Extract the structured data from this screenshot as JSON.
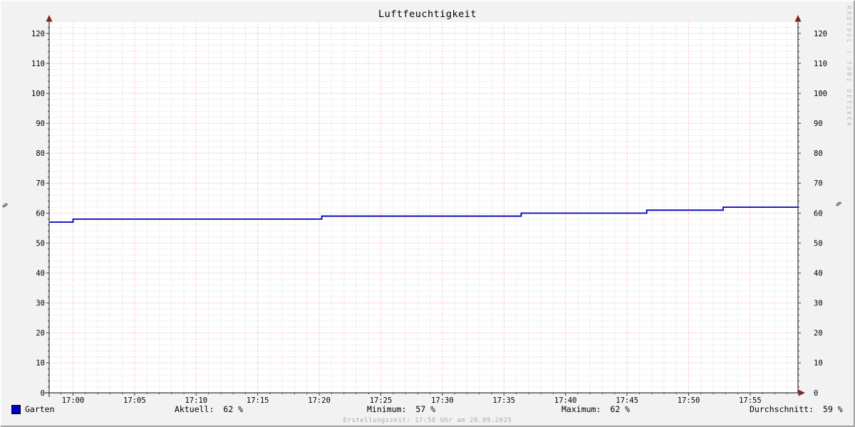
{
  "title": "Luftfeuchtigkeit",
  "watermark": "RRDTOOL / TOBI OETIKER",
  "footer": "Erstellungszeit: 17:58 Uhr am 28.09.2025",
  "legend": {
    "series_label": "Garten",
    "swatch_color": "#0000c8",
    "stats": [
      {
        "label": "Aktuell:",
        "value": "62 %"
      },
      {
        "label": "Minimum:",
        "value": "57 %"
      },
      {
        "label": "Maximum:",
        "value": "62 %"
      },
      {
        "label": "Durchschnitt:",
        "value": "59 %"
      }
    ]
  },
  "chart_data": {
    "type": "line",
    "title": "Luftfeuchtigkeit",
    "ylabel": "%",
    "ylabel_right": "%",
    "legend_position": "bottom",
    "x_axis": {
      "tick_labels": [
        "17:00",
        "17:05",
        "17:10",
        "17:15",
        "17:20",
        "17:25",
        "17:30",
        "17:35",
        "17:40",
        "17:45",
        "17:50",
        "17:55"
      ],
      "tick_interval_min": 5,
      "minor_interval_min": 1,
      "range_minutes": [
        -1.9,
        58.9
      ]
    },
    "y_axis": {
      "ticks": [
        0,
        10,
        20,
        30,
        40,
        50,
        60,
        70,
        80,
        90,
        100,
        110,
        120
      ],
      "minor_interval": 2,
      "max_value": 123,
      "unit": "%"
    },
    "grid": {
      "minor_color": "#d6d6d6",
      "major_color": "#eda4a4",
      "canvas_color": "#ffffff",
      "axis_color": "#3a3a3a",
      "arrow_color": "#7f2626"
    },
    "series": [
      {
        "name": "Garten",
        "color": "#0000b4",
        "step_points": [
          [
            -1.9,
            57
          ],
          [
            0,
            58
          ],
          [
            20.2,
            59
          ],
          [
            36.4,
            60
          ],
          [
            46.6,
            61
          ],
          [
            52.8,
            62
          ]
        ],
        "end_minute": 58.9,
        "stats": {
          "current": 62,
          "minimum": 57,
          "maximum": 62,
          "average": 59
        }
      }
    ]
  }
}
